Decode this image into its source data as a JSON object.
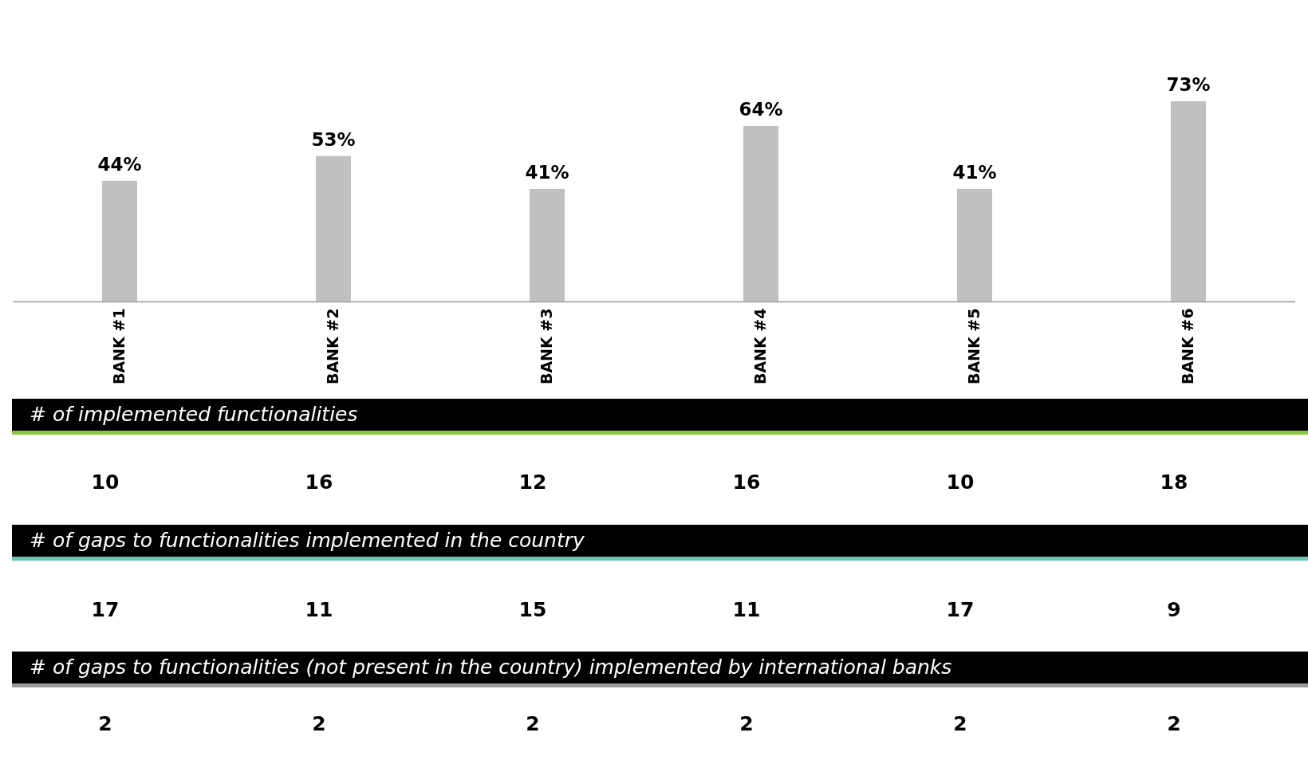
{
  "chart_data": [
    {
      "type": "bar",
      "categories": [
        "BANK #1",
        "BANK #2",
        "BANK #3",
        "BANK #4",
        "BANK #5",
        "BANK #6"
      ],
      "values": [
        44,
        53,
        41,
        64,
        41,
        73
      ],
      "value_labels": [
        "44%",
        "53%",
        "41%",
        "64%",
        "41%",
        "73%"
      ],
      "color": "#c0c0c0"
    },
    {
      "type": "other",
      "title": "# of implemented functionalities",
      "values": [
        10,
        16,
        12,
        16,
        10,
        18
      ],
      "data_labels": true
    },
    {
      "type": "other",
      "title": "# of gaps to functionalities implemented in the country",
      "values": [
        17,
        11,
        15,
        11,
        17,
        9
      ],
      "data_labels": true
    },
    {
      "type": "other",
      "title": "# of gaps to functionalities (not present in the country) implemented by international banks",
      "values": [
        2,
        2,
        2,
        2,
        2,
        2
      ],
      "data_labels": true
    }
  ]
}
